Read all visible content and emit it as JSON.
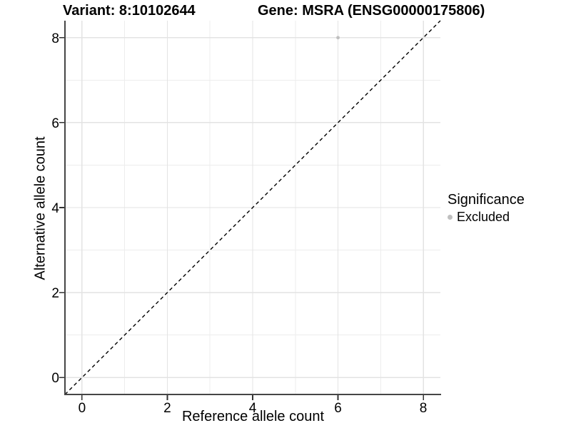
{
  "chart_data": {
    "type": "scatter",
    "titles": {
      "left": "Variant: 8:10102644",
      "right": "Gene: MSRA (ENSG00000175806)"
    },
    "xlabel": "Reference allele count",
    "ylabel": "Alternative allele count",
    "xlim": [
      -0.4,
      8.4
    ],
    "ylim": [
      -0.4,
      8.4
    ],
    "xticks": [
      0,
      2,
      4,
      6,
      8
    ],
    "yticks": [
      0,
      2,
      4,
      6,
      8
    ],
    "minor_grid": [
      1,
      3,
      5,
      7
    ],
    "grid": true,
    "reference_line": {
      "type": "identity y=x",
      "x0": -0.4,
      "y0": -0.4,
      "x1": 8.4,
      "y1": 8.4,
      "style": "dashed",
      "color": "#000000"
    },
    "points": [
      {
        "x": 6,
        "y": 8,
        "group": "Excluded"
      }
    ],
    "legend": {
      "position": "right",
      "title": "Significance",
      "entries": [
        {
          "label": "Excluded",
          "color": "#bfbfbf"
        }
      ]
    },
    "colors": {
      "grid_major": "#e3e3e3",
      "grid_minor": "#ededed",
      "axis": "#464646",
      "tick": "#333333",
      "text": "#000000"
    }
  }
}
